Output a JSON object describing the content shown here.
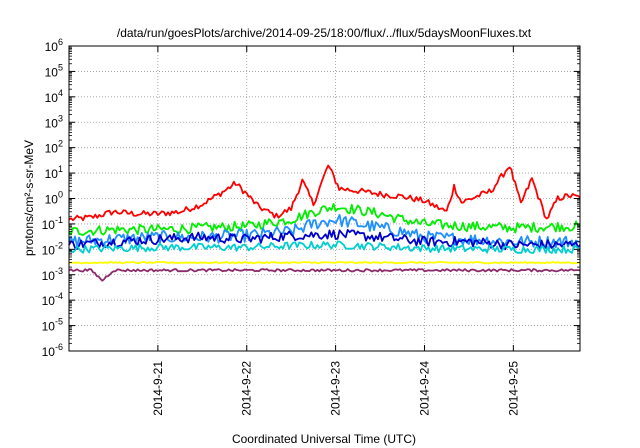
{
  "chart_data": {
    "type": "line",
    "title": "/data/run/goesPlots/archive/2014-09-25/18:00/flux/../flux/5daysMoonFluxes.txt",
    "xlabel": "Coordinated Universal Time (UTC)",
    "ylabel": "protons/cm²-s-sr-MeV",
    "yscale": "log",
    "ylim": [
      1e-06,
      1000000.0
    ],
    "xlim": [
      "2014-09-20T00:00",
      "2014-09-25T18:00"
    ],
    "y_ticks": [
      {
        "base": "10",
        "exp": "-6",
        "value": 1e-06
      },
      {
        "base": "10",
        "exp": "-5",
        "value": 1e-05
      },
      {
        "base": "10",
        "exp": "-4",
        "value": 0.0001
      },
      {
        "base": "10",
        "exp": "-3",
        "value": 0.001
      },
      {
        "base": "10",
        "exp": "-2",
        "value": 0.01
      },
      {
        "base": "10",
        "exp": "-1",
        "value": 0.1
      },
      {
        "base": "10",
        "exp": "0",
        "value": 1
      },
      {
        "base": "10",
        "exp": "1",
        "value": 10
      },
      {
        "base": "10",
        "exp": "2",
        "value": 100
      },
      {
        "base": "10",
        "exp": "3",
        "value": 1000
      },
      {
        "base": "10",
        "exp": "4",
        "value": 10000
      },
      {
        "base": "10",
        "exp": "5",
        "value": 100000
      },
      {
        "base": "10",
        "exp": "6",
        "value": 1000000
      }
    ],
    "x_ticks": [
      {
        "label": "2014-9-21",
        "value": "2014-09-21T00:00"
      },
      {
        "label": "2014-9-22",
        "value": "2014-09-22T00:00"
      },
      {
        "label": "2014-9-23",
        "value": "2014-09-23T00:00"
      },
      {
        "label": "2014-9-24",
        "value": "2014-09-24T00:00"
      },
      {
        "label": "2014-9-25",
        "value": "2014-09-25T00:00"
      }
    ],
    "grid": true,
    "legend": "none",
    "series": [
      {
        "color": "#ff0000",
        "points": [
          [
            "2014-09-20T00:00",
            0.15
          ],
          [
            "2014-09-20T06:00",
            0.18
          ],
          [
            "2014-09-20T12:00",
            0.3
          ],
          [
            "2014-09-20T18:00",
            0.25
          ],
          [
            "2014-09-21T00:00",
            0.25
          ],
          [
            "2014-09-21T06:00",
            0.3
          ],
          [
            "2014-09-21T12:00",
            0.6
          ],
          [
            "2014-09-21T18:00",
            2.0
          ],
          [
            "2014-09-21T21:00",
            4.0
          ],
          [
            "2014-09-22T00:00",
            1.5
          ],
          [
            "2014-09-22T03:00",
            0.5
          ],
          [
            "2014-09-22T08:00",
            0.2
          ],
          [
            "2014-09-22T12:00",
            0.4
          ],
          [
            "2014-09-22T15:00",
            5.0
          ],
          [
            "2014-09-22T18:00",
            0.6
          ],
          [
            "2014-09-22T22:00",
            20.0
          ],
          [
            "2014-09-23T01:00",
            2.5
          ],
          [
            "2014-09-23T06:00",
            2.0
          ],
          [
            "2014-09-23T12:00",
            1.5
          ],
          [
            "2014-09-23T18:00",
            1.2
          ],
          [
            "2014-09-24T00:00",
            0.8
          ],
          [
            "2014-09-24T06:00",
            0.3
          ],
          [
            "2014-09-24T08:00",
            3.0
          ],
          [
            "2014-09-24T10:00",
            0.7
          ],
          [
            "2014-09-24T18:00",
            2.0
          ],
          [
            "2014-09-24T23:00",
            20.0
          ],
          [
            "2014-09-25T02:00",
            0.6
          ],
          [
            "2014-09-25T05:00",
            6.0
          ],
          [
            "2014-09-25T09:00",
            0.15
          ],
          [
            "2014-09-25T12:00",
            1.0
          ],
          [
            "2014-09-25T15:00",
            1.3
          ],
          [
            "2014-09-25T18:00",
            1.1
          ]
        ]
      },
      {
        "color": "#00ee00",
        "points": [
          [
            "2014-09-20T00:00",
            0.05
          ],
          [
            "2014-09-20T12:00",
            0.06
          ],
          [
            "2014-09-21T00:00",
            0.06
          ],
          [
            "2014-09-21T12:00",
            0.07
          ],
          [
            "2014-09-22T00:00",
            0.08
          ],
          [
            "2014-09-22T12:00",
            0.15
          ],
          [
            "2014-09-22T18:00",
            0.3
          ],
          [
            "2014-09-23T00:00",
            0.5
          ],
          [
            "2014-09-23T06:00",
            0.35
          ],
          [
            "2014-09-23T12:00",
            0.25
          ],
          [
            "2014-09-23T18:00",
            0.15
          ],
          [
            "2014-09-24T00:00",
            0.1
          ],
          [
            "2014-09-24T12:00",
            0.08
          ],
          [
            "2014-09-25T00:00",
            0.07
          ],
          [
            "2014-09-25T12:00",
            0.08
          ],
          [
            "2014-09-25T18:00",
            0.08
          ]
        ]
      },
      {
        "color": "#1e90ff",
        "points": [
          [
            "2014-09-20T00:00",
            0.02
          ],
          [
            "2014-09-20T12:00",
            0.025
          ],
          [
            "2014-09-21T00:00",
            0.03
          ],
          [
            "2014-09-21T12:00",
            0.03
          ],
          [
            "2014-09-22T00:00",
            0.035
          ],
          [
            "2014-09-22T12:00",
            0.05
          ],
          [
            "2014-09-22T18:00",
            0.1
          ],
          [
            "2014-09-23T00:00",
            0.15
          ],
          [
            "2014-09-23T06:00",
            0.1
          ],
          [
            "2014-09-23T12:00",
            0.07
          ],
          [
            "2014-09-23T18:00",
            0.05
          ],
          [
            "2014-09-24T00:00",
            0.03
          ],
          [
            "2014-09-24T12:00",
            0.025
          ],
          [
            "2014-09-25T00:00",
            0.02
          ],
          [
            "2014-09-25T18:00",
            0.02
          ]
        ]
      },
      {
        "color": "#0000cc",
        "points": [
          [
            "2014-09-20T00:00",
            0.015
          ],
          [
            "2014-09-20T12:00",
            0.02
          ],
          [
            "2014-09-21T00:00",
            0.025
          ],
          [
            "2014-09-21T12:00",
            0.03
          ],
          [
            "2014-09-22T00:00",
            0.025
          ],
          [
            "2014-09-22T12:00",
            0.035
          ],
          [
            "2014-09-23T00:00",
            0.04
          ],
          [
            "2014-09-23T12:00",
            0.03
          ],
          [
            "2014-09-24T00:00",
            0.02
          ],
          [
            "2014-09-24T12:00",
            0.02
          ],
          [
            "2014-09-25T00:00",
            0.015
          ],
          [
            "2014-09-25T18:00",
            0.015
          ]
        ]
      },
      {
        "color": "#00ced1",
        "points": [
          [
            "2014-09-20T00:00",
            0.01
          ],
          [
            "2014-09-21T00:00",
            0.012
          ],
          [
            "2014-09-22T00:00",
            0.012
          ],
          [
            "2014-09-22T12:00",
            0.014
          ],
          [
            "2014-09-23T00:00",
            0.015
          ],
          [
            "2014-09-23T12:00",
            0.013
          ],
          [
            "2014-09-24T00:00",
            0.011
          ],
          [
            "2014-09-25T00:00",
            0.01
          ],
          [
            "2014-09-25T18:00",
            0.01
          ]
        ]
      },
      {
        "color": "#ffff00",
        "points": [
          [
            "2014-09-20T00:00",
            0.003
          ],
          [
            "2014-09-21T00:00",
            0.003
          ],
          [
            "2014-09-22T00:00",
            0.003
          ],
          [
            "2014-09-23T00:00",
            0.003
          ],
          [
            "2014-09-24T00:00",
            0.003
          ],
          [
            "2014-09-25T00:00",
            0.003
          ],
          [
            "2014-09-25T18:00",
            0.003
          ]
        ]
      },
      {
        "color": "#8b2a6b",
        "points": [
          [
            "2014-09-20T00:00",
            0.0015
          ],
          [
            "2014-09-20T06:00",
            0.0015
          ],
          [
            "2014-09-20T09:00",
            0.0006
          ],
          [
            "2014-09-20T12:00",
            0.0015
          ],
          [
            "2014-09-21T00:00",
            0.0015
          ],
          [
            "2014-09-22T00:00",
            0.0015
          ],
          [
            "2014-09-23T00:00",
            0.0015
          ],
          [
            "2014-09-24T00:00",
            0.0015
          ],
          [
            "2014-09-25T00:00",
            0.0015
          ],
          [
            "2014-09-25T18:00",
            0.0015
          ]
        ]
      }
    ]
  }
}
